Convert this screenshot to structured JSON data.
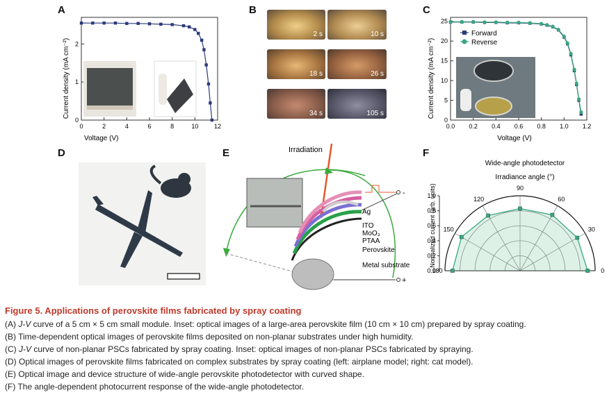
{
  "panels": {
    "A": "A",
    "B": "B",
    "C": "C",
    "D": "D",
    "E": "E",
    "F": "F"
  },
  "panel_b_times": [
    "2 s",
    "10 s",
    "18 s",
    "26 s",
    "34 s",
    "105 s"
  ],
  "panel_e": {
    "irradiation": "Irradiation",
    "layers": [
      "Ag",
      "ITO",
      "MoO₃",
      "PTAA",
      "Perovskite",
      "Metal substrate"
    ],
    "minus": "-",
    "plus": "+"
  },
  "chart_data": [
    {
      "type": "line",
      "panel": "A",
      "xlabel": "Voltage (V)",
      "ylabel": "Current density (mA cm⁻²)",
      "xlim": [
        0,
        12
      ],
      "ylim": [
        0,
        2.7
      ],
      "xticks": [
        0,
        2,
        4,
        6,
        8,
        10,
        12
      ],
      "yticks": [
        0,
        1,
        2
      ],
      "x": [
        0,
        1,
        2,
        3,
        4,
        5,
        6,
        7,
        8,
        9,
        9.5,
        10,
        10.3,
        10.6,
        10.8,
        11.0,
        11.2,
        11.35,
        11.5
      ],
      "y": [
        2.55,
        2.55,
        2.55,
        2.55,
        2.54,
        2.54,
        2.53,
        2.52,
        2.51,
        2.48,
        2.45,
        2.38,
        2.28,
        2.1,
        1.85,
        1.45,
        0.95,
        0.45,
        0.0
      ]
    },
    {
      "type": "line",
      "panel": "C",
      "xlabel": "Voltage (V)",
      "ylabel": "Current density (mA cm⁻²)",
      "xlim": [
        0,
        1.2
      ],
      "ylim": [
        0,
        26
      ],
      "xticks": [
        0.0,
        0.2,
        0.4,
        0.6,
        0.8,
        1.0,
        1.2
      ],
      "yticks": [
        0,
        5,
        10,
        15,
        20,
        25
      ],
      "legend": "upper-right",
      "series": [
        {
          "name": "Forward",
          "color": "#2b3a7a",
          "x": [
            0,
            0.1,
            0.2,
            0.3,
            0.4,
            0.5,
            0.6,
            0.7,
            0.8,
            0.85,
            0.9,
            0.95,
            1.0,
            1.03,
            1.06,
            1.09,
            1.11,
            1.13,
            1.15
          ],
          "y": [
            24.8,
            24.8,
            24.8,
            24.7,
            24.7,
            24.6,
            24.6,
            24.5,
            24.3,
            24.0,
            23.6,
            22.8,
            21.0,
            19.3,
            16.5,
            12.5,
            9.0,
            5.0,
            1.5
          ]
        },
        {
          "name": "Reverse",
          "color": "#3aa77f",
          "x": [
            0,
            0.1,
            0.2,
            0.3,
            0.4,
            0.5,
            0.6,
            0.7,
            0.8,
            0.85,
            0.9,
            0.95,
            1.0,
            1.03,
            1.06,
            1.09,
            1.11,
            1.13,
            1.15
          ],
          "y": [
            24.9,
            24.9,
            24.9,
            24.8,
            24.8,
            24.7,
            24.7,
            24.6,
            24.4,
            24.1,
            23.7,
            22.9,
            21.2,
            19.5,
            16.8,
            12.8,
            9.3,
            5.3,
            2.0
          ]
        }
      ]
    },
    {
      "type": "polar",
      "panel": "F",
      "title": "Wide-angle photodetector",
      "subtitle": "Irradiance angle (°)",
      "ylabel": "Normalized current (arb. units)",
      "rlim": [
        0,
        1.0
      ],
      "rticks": [
        0.0,
        0.2,
        0.4,
        0.6,
        0.8,
        1.0
      ],
      "angle_ticks": [
        0,
        30,
        60,
        90,
        120,
        150,
        180
      ],
      "angles": [
        0,
        30,
        60,
        90,
        120,
        150,
        180
      ],
      "values": [
        0.9,
        0.88,
        0.86,
        0.83,
        0.85,
        0.9,
        0.9
      ]
    }
  ],
  "caption": {
    "title": "Figure 5.  Applications of perovskite films fabricated by spray coating",
    "lineA_prefix": "(A) ",
    "lineA_jv": "J-V",
    "lineA_rest": " curve of a 5 cm × 5 cm small module. Inset: optical images of a large-area perovskite film (10 cm × 10 cm) prepared by spray coating.",
    "lineB": "(B) Time-dependent optical images of perovskite films deposited on non-planar substrates under high humidity.",
    "lineC_prefix": "(C) ",
    "lineC_jv": "J-V",
    "lineC_rest": " curve of non-planar PSCs fabricated by spray coating. Inset: optical images of non-planar PSCs fabricated by spraying.",
    "lineD": "(D) Optical images of perovskite films fabricated on complex substrates by spray coating (left: airplane model; right: cat model).",
    "lineE": "(E) Optical image and device structure of wide-angle perovskite photodetector with curved shape.",
    "lineF": "(F) The angle-dependent photocurrent response of the wide-angle photodetector."
  }
}
